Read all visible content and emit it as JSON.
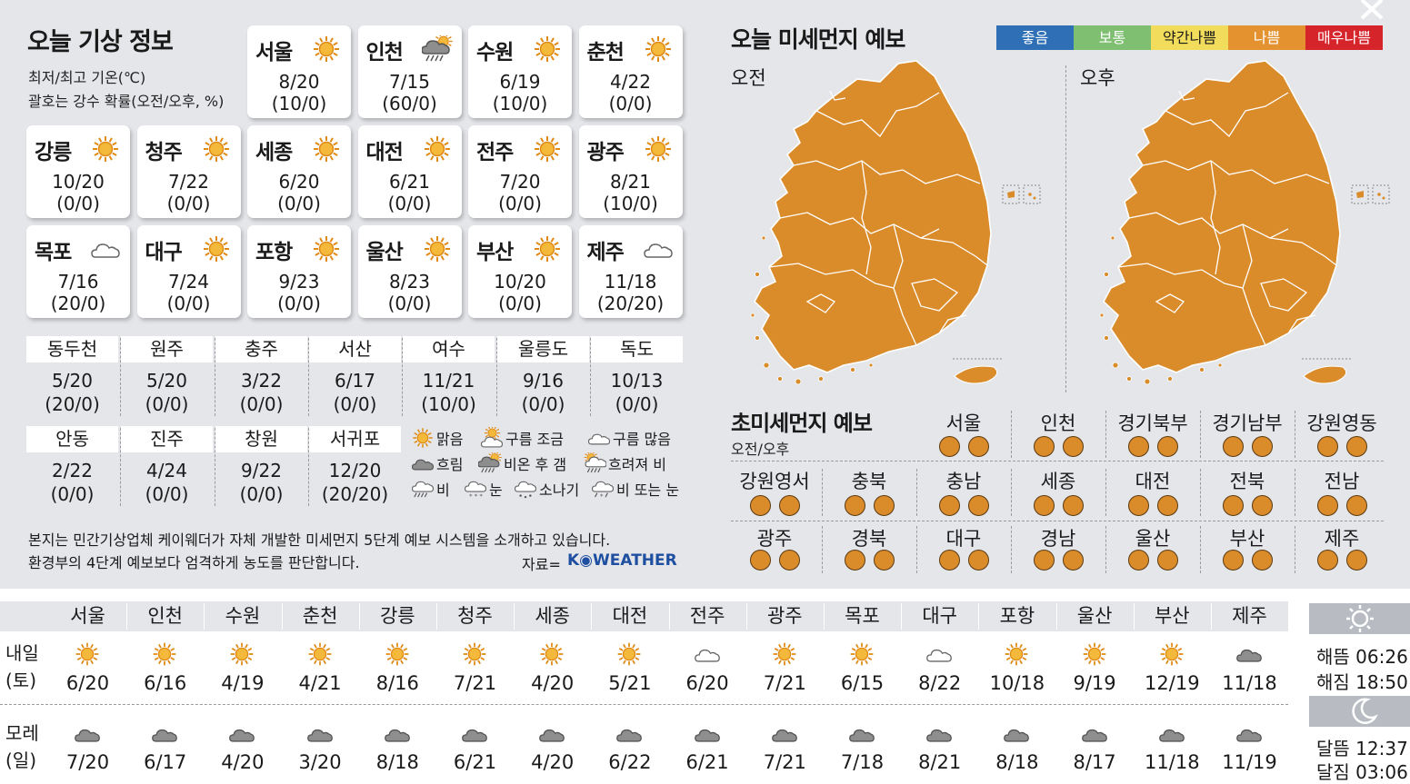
{
  "header": {
    "title": "오늘 기상 정보",
    "subtitle1": "최저/최고 기온(℃)",
    "subtitle2": "괄호는 강수 확률(오전/오후, %)"
  },
  "cities": [
    {
      "name": "서울",
      "temp": "8/20",
      "prob": "(10/0)",
      "icon": "sun-icon"
    },
    {
      "name": "인천",
      "temp": "7/15",
      "prob": "(60/0)",
      "icon": "rain-sun-icon"
    },
    {
      "name": "수원",
      "temp": "6/19",
      "prob": "(10/0)",
      "icon": "sun-icon"
    },
    {
      "name": "춘천",
      "temp": "4/22",
      "prob": "(0/0)",
      "icon": "sun-icon"
    },
    {
      "name": "강릉",
      "temp": "10/20",
      "prob": "(0/0)",
      "icon": "sun-icon"
    },
    {
      "name": "청주",
      "temp": "7/22",
      "prob": "(0/0)",
      "icon": "sun-icon"
    },
    {
      "name": "세종",
      "temp": "6/20",
      "prob": "(0/0)",
      "icon": "sun-icon"
    },
    {
      "name": "대전",
      "temp": "6/21",
      "prob": "(0/0)",
      "icon": "sun-icon"
    },
    {
      "name": "전주",
      "temp": "7/20",
      "prob": "(0/0)",
      "icon": "sun-icon"
    },
    {
      "name": "광주",
      "temp": "8/21",
      "prob": "(10/0)",
      "icon": "sun-icon"
    },
    {
      "name": "목포",
      "temp": "7/16",
      "prob": "(20/0)",
      "icon": "cloud-outline-icon"
    },
    {
      "name": "대구",
      "temp": "7/24",
      "prob": "(0/0)",
      "icon": "sun-icon"
    },
    {
      "name": "포항",
      "temp": "9/23",
      "prob": "(0/0)",
      "icon": "sun-icon"
    },
    {
      "name": "울산",
      "temp": "8/23",
      "prob": "(0/0)",
      "icon": "sun-icon"
    },
    {
      "name": "부산",
      "temp": "10/20",
      "prob": "(0/0)",
      "icon": "sun-icon"
    },
    {
      "name": "제주",
      "temp": "11/18",
      "prob": "(20/20)",
      "icon": "cloud-outline-icon"
    }
  ],
  "small_cities_row1": [
    {
      "name": "동두천",
      "temp": "5/20",
      "prob": "(20/0)"
    },
    {
      "name": "원주",
      "temp": "5/20",
      "prob": "(0/0)"
    },
    {
      "name": "충주",
      "temp": "3/22",
      "prob": "(0/0)"
    },
    {
      "name": "서산",
      "temp": "6/17",
      "prob": "(0/0)"
    },
    {
      "name": "여수",
      "temp": "11/21",
      "prob": "(10/0)"
    },
    {
      "name": "울릉도",
      "temp": "9/16",
      "prob": "(0/0)"
    },
    {
      "name": "독도",
      "temp": "10/13",
      "prob": "(0/0)"
    }
  ],
  "small_cities_row2": [
    {
      "name": "안동",
      "temp": "2/22",
      "prob": "(0/0)"
    },
    {
      "name": "진주",
      "temp": "4/24",
      "prob": "(0/0)"
    },
    {
      "name": "창원",
      "temp": "9/22",
      "prob": "(0/0)"
    },
    {
      "name": "서귀포",
      "temp": "12/20",
      "prob": "(20/20)"
    }
  ],
  "legend": [
    {
      "label": "맑음",
      "icon": "sun-icon"
    },
    {
      "label": "구름 조금",
      "icon": "sun-cloud-icon"
    },
    {
      "label": "구름 많음",
      "icon": "cloud-outline-icon"
    },
    {
      "label": "흐림",
      "icon": "cloud-gray-icon"
    },
    {
      "label": "비온 후 갬",
      "icon": "rain-sun-icon"
    },
    {
      "label": "흐려져 비",
      "icon": "sun-cloud-rain-icon"
    },
    {
      "label": "비",
      "icon": "rain-icon"
    },
    {
      "label": "눈",
      "icon": "snow-icon"
    },
    {
      "label": "소나기",
      "icon": "shower-icon"
    },
    {
      "label": "비 또는 눈",
      "icon": "rain-snow-icon"
    }
  ],
  "note": {
    "line1": "본지는 민간기상업체 케이웨더가 자체 개발한 미세먼지 5단계 예보 시스템을 소개하고 있습니다.",
    "line2": "환경부의 4단계 예보보다 엄격하게 농도를 판단합니다.",
    "source_label": "자료=",
    "source_brand": "K◉WEATHER"
  },
  "dust": {
    "title": "오늘 미세먼지 예보",
    "am_label": "오전",
    "pm_label": "오후",
    "map_color": "#da8b2a",
    "scale": [
      {
        "label": "좋음",
        "color": "#2f6fb5",
        "text": "#ffffff"
      },
      {
        "label": "보통",
        "color": "#7fbf72",
        "text": "#ffffff"
      },
      {
        "label": "약간나쁨",
        "color": "#f2dc5c",
        "text": "#1a1a1a"
      },
      {
        "label": "나쁨",
        "color": "#e3922f",
        "text": "#ffffff"
      },
      {
        "label": "매우나쁨",
        "color": "#d6242b",
        "text": "#ffffff"
      }
    ]
  },
  "ultra": {
    "title": "초미세먼지 예보",
    "subtitle": "오전/오후",
    "row1": [
      "서울",
      "인천",
      "경기북부",
      "경기남부",
      "강원영동"
    ],
    "row2": [
      "강원영서",
      "충북",
      "충남",
      "세종",
      "대전",
      "전북",
      "전남"
    ],
    "row3": [
      "광주",
      "경북",
      "대구",
      "경남",
      "울산",
      "부산",
      "제주"
    ],
    "dot_color": "#da8b2a"
  },
  "forecast": {
    "cities": [
      "서울",
      "인천",
      "수원",
      "춘천",
      "강릉",
      "청주",
      "세종",
      "대전",
      "전주",
      "광주",
      "목포",
      "대구",
      "포항",
      "울산",
      "부산",
      "제주"
    ],
    "tomorrow_label1": "내일",
    "tomorrow_label2": "(토)",
    "tomorrow": [
      {
        "icon": "sun-icon",
        "temp": "6/20"
      },
      {
        "icon": "sun-icon",
        "temp": "6/16"
      },
      {
        "icon": "sun-icon",
        "temp": "4/19"
      },
      {
        "icon": "sun-icon",
        "temp": "4/21"
      },
      {
        "icon": "sun-icon",
        "temp": "8/16"
      },
      {
        "icon": "sun-icon",
        "temp": "7/21"
      },
      {
        "icon": "sun-icon",
        "temp": "4/20"
      },
      {
        "icon": "sun-icon",
        "temp": "5/21"
      },
      {
        "icon": "cloud-outline-icon",
        "temp": "6/20"
      },
      {
        "icon": "sun-icon",
        "temp": "7/21"
      },
      {
        "icon": "sun-icon",
        "temp": "6/15"
      },
      {
        "icon": "cloud-outline-icon",
        "temp": "8/22"
      },
      {
        "icon": "sun-icon",
        "temp": "10/18"
      },
      {
        "icon": "sun-icon",
        "temp": "9/19"
      },
      {
        "icon": "sun-icon",
        "temp": "12/19"
      },
      {
        "icon": "cloud-gray-icon",
        "temp": "11/18"
      }
    ],
    "dayafter_label1": "모레",
    "dayafter_label2": "(일)",
    "dayafter": [
      {
        "icon": "cloud-gray-icon",
        "temp": "7/20"
      },
      {
        "icon": "cloud-gray-icon",
        "temp": "6/17"
      },
      {
        "icon": "cloud-gray-icon",
        "temp": "4/20"
      },
      {
        "icon": "cloud-gray-icon",
        "temp": "3/20"
      },
      {
        "icon": "cloud-gray-icon",
        "temp": "8/18"
      },
      {
        "icon": "cloud-gray-icon",
        "temp": "6/21"
      },
      {
        "icon": "cloud-gray-icon",
        "temp": "4/20"
      },
      {
        "icon": "cloud-gray-icon",
        "temp": "6/22"
      },
      {
        "icon": "cloud-gray-icon",
        "temp": "6/21"
      },
      {
        "icon": "cloud-gray-icon",
        "temp": "7/21"
      },
      {
        "icon": "cloud-gray-icon",
        "temp": "7/18"
      },
      {
        "icon": "cloud-gray-icon",
        "temp": "8/21"
      },
      {
        "icon": "cloud-gray-icon",
        "temp": "8/18"
      },
      {
        "icon": "cloud-gray-icon",
        "temp": "8/17"
      },
      {
        "icon": "cloud-gray-icon",
        "temp": "11/18"
      },
      {
        "icon": "cloud-gray-icon",
        "temp": "11/19"
      }
    ]
  },
  "sun": {
    "sunrise": "해뜸 06:26",
    "sunset": "해짐 18:50",
    "moonrise": "달뜸 12:37",
    "moonset": "달짐 03:06"
  }
}
